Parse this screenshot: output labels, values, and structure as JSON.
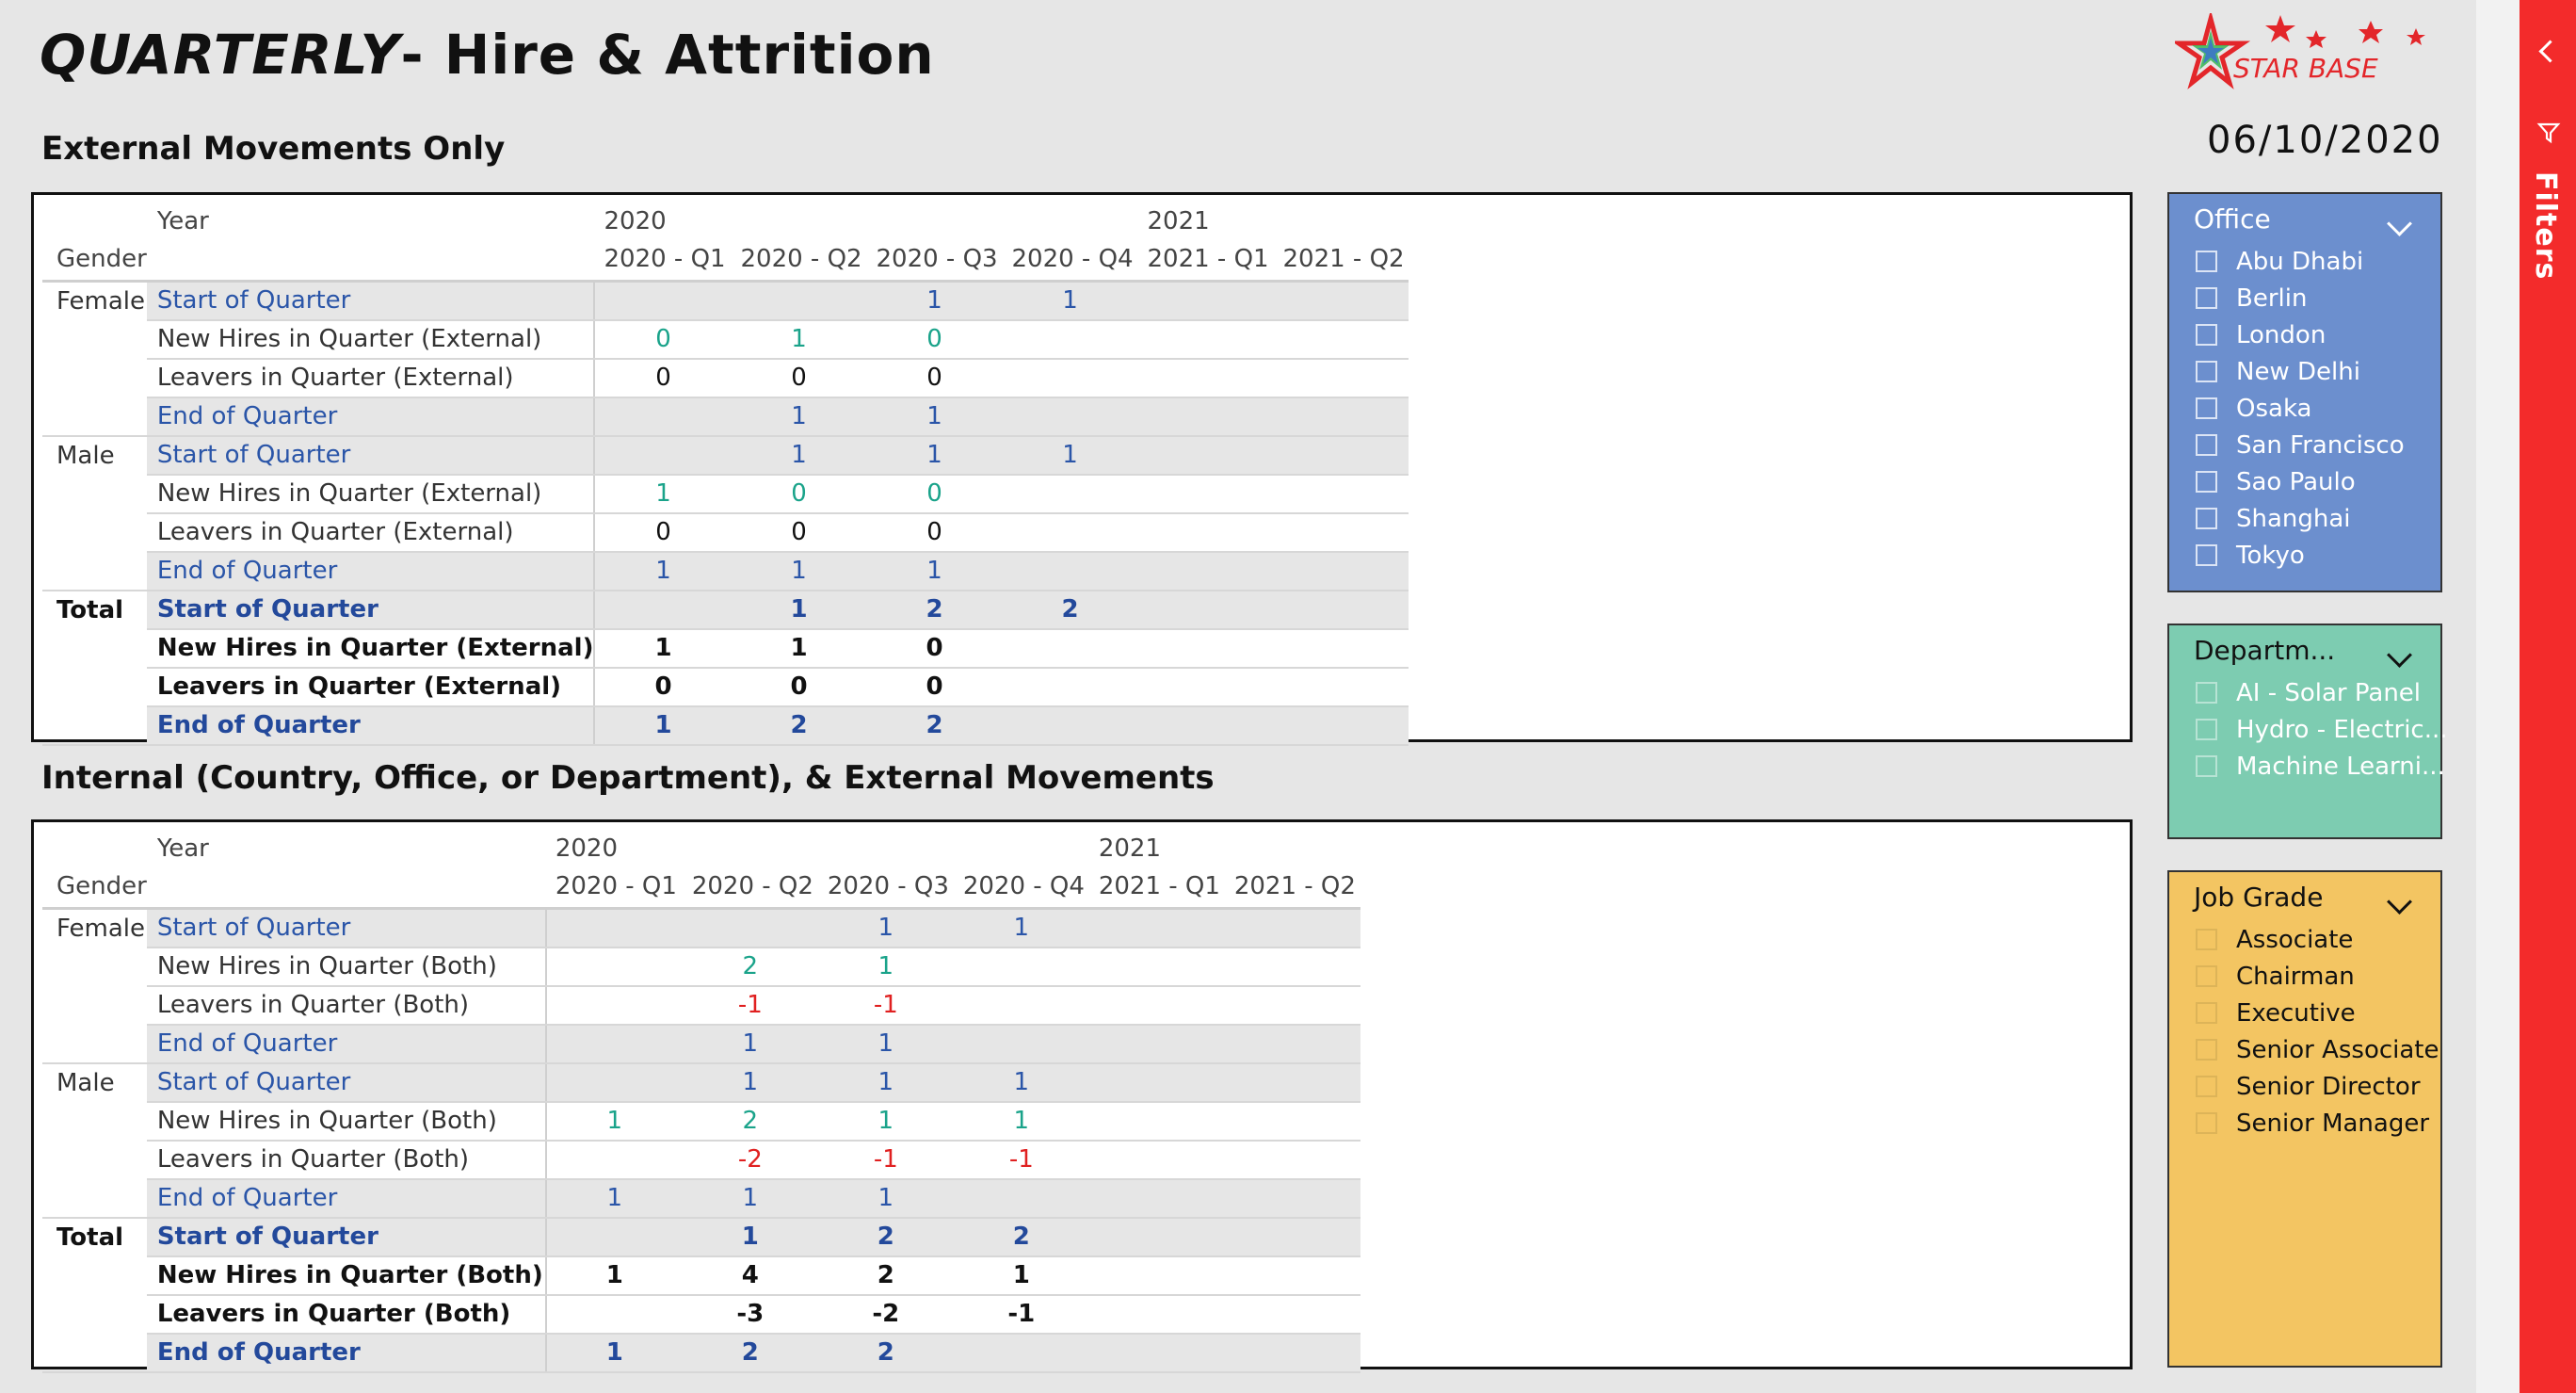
{
  "title": {
    "emphasis": "QUARTERLY",
    "rest": "- Hire & Attrition"
  },
  "date": "06/10/2020",
  "logo_text": "STAR BASE",
  "colors": {
    "blue": "#2a55a8",
    "green": "#1aa38a",
    "red": "#e02020",
    "accent_red": "#f32b2b"
  },
  "external": {
    "heading": "External Movements Only",
    "header": {
      "year_label": "Year",
      "gender_label": "Gender",
      "years": [
        "2020",
        "",
        "",
        "",
        "2021",
        ""
      ],
      "quarters": [
        "2020 - Q1",
        "2020 - Q2",
        "2020 - Q3",
        "2020 - Q4",
        "2021 - Q1",
        "2021 - Q2"
      ]
    },
    "rows": [
      {
        "gender": "Female",
        "measure": "Start of Quarter",
        "values": [
          "",
          "",
          "1",
          "1",
          "",
          ""
        ]
      },
      {
        "gender": "",
        "measure": "New Hires in Quarter (External)",
        "values": [
          "0",
          "1",
          "0",
          "",
          "",
          ""
        ]
      },
      {
        "gender": "",
        "measure": "Leavers in Quarter (External)",
        "values": [
          "0",
          "0",
          "0",
          "",
          "",
          ""
        ]
      },
      {
        "gender": "",
        "measure": "End of Quarter",
        "values": [
          "",
          "1",
          "1",
          "",
          "",
          ""
        ]
      },
      {
        "gender": "Male",
        "measure": "Start of Quarter",
        "values": [
          "",
          "1",
          "1",
          "1",
          "",
          ""
        ]
      },
      {
        "gender": "",
        "measure": "New Hires in Quarter (External)",
        "values": [
          "1",
          "0",
          "0",
          "",
          "",
          ""
        ]
      },
      {
        "gender": "",
        "measure": "Leavers in Quarter (External)",
        "values": [
          "0",
          "0",
          "0",
          "",
          "",
          ""
        ]
      },
      {
        "gender": "",
        "measure": "End of Quarter",
        "values": [
          "1",
          "1",
          "1",
          "",
          "",
          ""
        ]
      },
      {
        "gender": "Total",
        "measure": "Start of Quarter",
        "values": [
          "",
          "1",
          "2",
          "2",
          "",
          ""
        ]
      },
      {
        "gender": "",
        "measure": "New Hires in Quarter (External)",
        "values": [
          "1",
          "1",
          "0",
          "",
          "",
          ""
        ]
      },
      {
        "gender": "",
        "measure": "Leavers in Quarter (External)",
        "values": [
          "0",
          "0",
          "0",
          "",
          "",
          ""
        ]
      },
      {
        "gender": "",
        "measure": "End of Quarter",
        "values": [
          "1",
          "2",
          "2",
          "",
          "",
          ""
        ]
      }
    ]
  },
  "internal": {
    "heading": "Internal (Country, Office, or Department), & External Movements",
    "header": {
      "year_label": "Year",
      "gender_label": "Gender",
      "years": [
        "2020",
        "",
        "",
        "",
        "2021",
        ""
      ],
      "quarters": [
        "2020 - Q1",
        "2020 - Q2",
        "2020 - Q3",
        "2020 - Q4",
        "2021 - Q1",
        "2021 - Q2"
      ]
    },
    "rows": [
      {
        "gender": "Female",
        "measure": "Start of Quarter",
        "values": [
          "",
          "",
          "1",
          "1",
          "",
          ""
        ]
      },
      {
        "gender": "",
        "measure": "New Hires in Quarter (Both)",
        "values": [
          "",
          "2",
          "1",
          "",
          "",
          ""
        ]
      },
      {
        "gender": "",
        "measure": "Leavers in Quarter (Both)",
        "values": [
          "",
          "-1",
          "-1",
          "",
          "",
          ""
        ]
      },
      {
        "gender": "",
        "measure": "End of Quarter",
        "values": [
          "",
          "1",
          "1",
          "",
          "",
          ""
        ]
      },
      {
        "gender": "Male",
        "measure": "Start of Quarter",
        "values": [
          "",
          "1",
          "1",
          "1",
          "",
          ""
        ]
      },
      {
        "gender": "",
        "measure": "New Hires in Quarter (Both)",
        "values": [
          "1",
          "2",
          "1",
          "1",
          "",
          ""
        ]
      },
      {
        "gender": "",
        "measure": "Leavers in Quarter (Both)",
        "values": [
          "",
          "-2",
          "-1",
          "-1",
          "",
          ""
        ]
      },
      {
        "gender": "",
        "measure": "End of Quarter",
        "values": [
          "1",
          "1",
          "1",
          "",
          "",
          ""
        ]
      },
      {
        "gender": "Total",
        "measure": "Start of Quarter",
        "values": [
          "",
          "1",
          "2",
          "2",
          "",
          ""
        ]
      },
      {
        "gender": "",
        "measure": "New Hires in Quarter (Both)",
        "values": [
          "1",
          "4",
          "2",
          "1",
          "",
          ""
        ]
      },
      {
        "gender": "",
        "measure": "Leavers in Quarter (Both)",
        "values": [
          "",
          "-3",
          "-2",
          "-1",
          "",
          ""
        ]
      },
      {
        "gender": "",
        "measure": "End of Quarter",
        "values": [
          "1",
          "2",
          "2",
          "",
          "",
          ""
        ]
      }
    ]
  },
  "slicers": {
    "office": {
      "title": "Office",
      "items": [
        "Abu Dhabi",
        "Berlin",
        "London",
        "New Delhi",
        "Osaka",
        "San Francisco",
        "Sao Paulo",
        "Shanghai",
        "Tokyo"
      ]
    },
    "department": {
      "title": "Departm...",
      "items": [
        "AI - Solar Panel",
        "Hydro - Electric...",
        "Machine Learni..."
      ]
    },
    "job_grade": {
      "title": "Job Grade",
      "items": [
        "Associate",
        "Chairman",
        "Executive",
        "Senior Associate",
        "Senior Director",
        "Senior Manager"
      ]
    }
  },
  "filters_pane": {
    "label": "Filters"
  }
}
